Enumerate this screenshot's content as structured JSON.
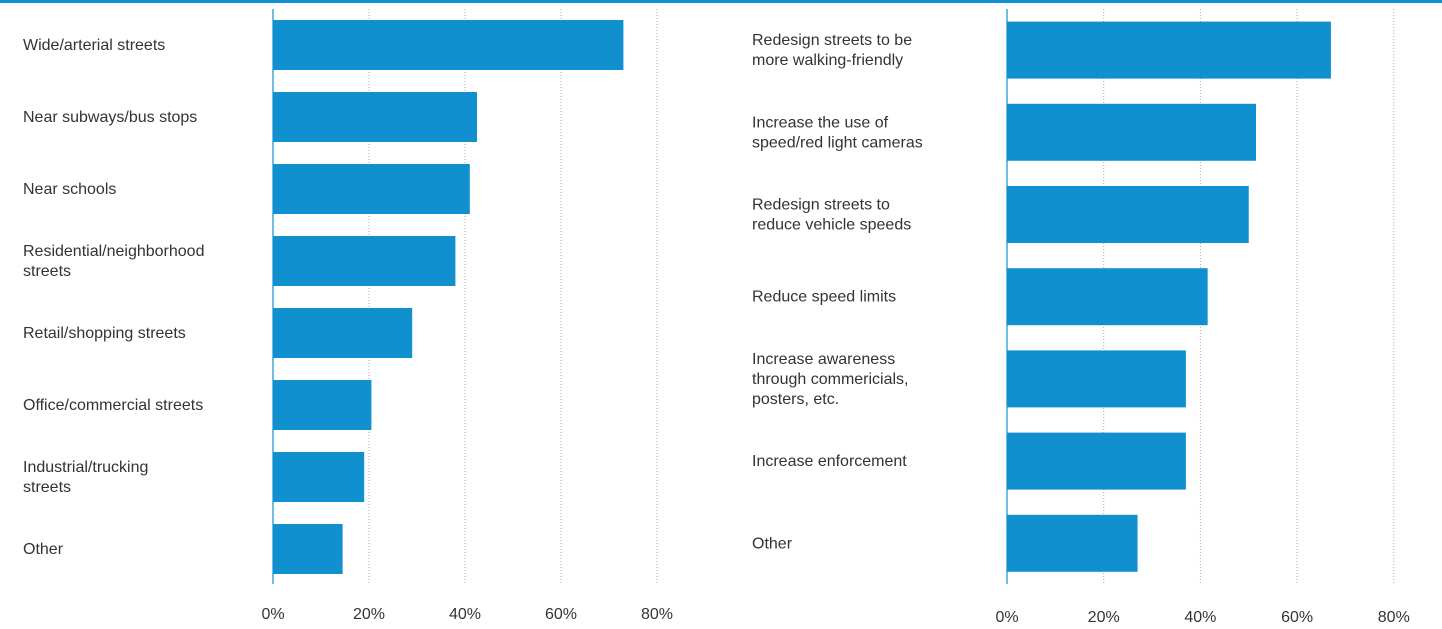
{
  "colors": {
    "bar": "#1190cf",
    "top_rule": "#1190cf",
    "grid": "#aaaaaa",
    "axis": "#1190cf",
    "text": "#333333"
  },
  "chart_data": [
    {
      "type": "bar",
      "orientation": "horizontal",
      "title": "",
      "xlabel": "",
      "ylabel": "",
      "categories": [
        "Wide/arterial streets",
        "Near subways/bus stops",
        "Near schools",
        "Residential/neighborhood streets",
        "Retail/shopping streets",
        "Office/commercial streets",
        "Industrial/trucking streets",
        "Other"
      ],
      "values": [
        73,
        42.5,
        41,
        38,
        29,
        20.5,
        19,
        14.5
      ],
      "xlim": [
        0,
        80
      ],
      "ticks": [
        "0%",
        "20%",
        "40%",
        "60%",
        "80%"
      ],
      "grid": "vertical dotted",
      "legend": "none"
    },
    {
      "type": "bar",
      "orientation": "horizontal",
      "title": "",
      "xlabel": "",
      "ylabel": "",
      "categories": [
        "Redesign streets to be more walking-friendly",
        "Increase the use of speed/red light cameras",
        "Redesign streets to reduce vehicle speeds",
        "Reduce speed limits",
        "Increase awareness through commericials, posters, etc.",
        "Increase enforcement",
        "Other"
      ],
      "values": [
        67,
        51.5,
        50,
        41.5,
        37,
        37,
        27
      ],
      "xlim": [
        0,
        80
      ],
      "ticks": [
        "0%",
        "20%",
        "40%",
        "60%",
        "80%"
      ],
      "grid": "vertical dotted",
      "legend": "none"
    }
  ]
}
